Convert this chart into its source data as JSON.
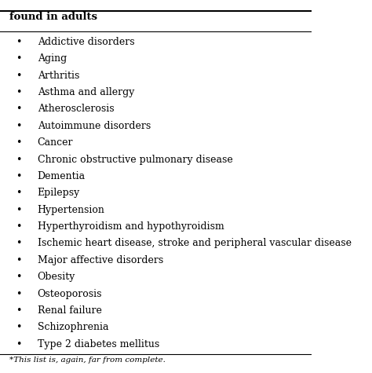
{
  "header": "found in adults",
  "items": [
    "Addictive disorders",
    "Aging",
    "Arthritis",
    "Asthma and allergy",
    "Atherosclerosis",
    "Autoimmune disorders",
    "Cancer",
    "Chronic obstructive pulmonary disease",
    "Dementia",
    "Epilepsy",
    "Hypertension",
    "Hyperthyroidism and hypothyroidism",
    "Ischemic heart disease, stroke and peripheral vascular disease",
    "Major affective disorders",
    "Obesity",
    "Osteoporosis",
    "Renal failure",
    "Schizophrenia",
    "Type 2 diabetes mellitus"
  ],
  "footnote": "*This list is, again, far from complete.",
  "bg_color": "#ffffff",
  "text_color": "#000000",
  "header_color": "#000000",
  "header_fontsize": 9.5,
  "item_fontsize": 9.0,
  "footnote_fontsize": 7.5,
  "bullet": "•"
}
